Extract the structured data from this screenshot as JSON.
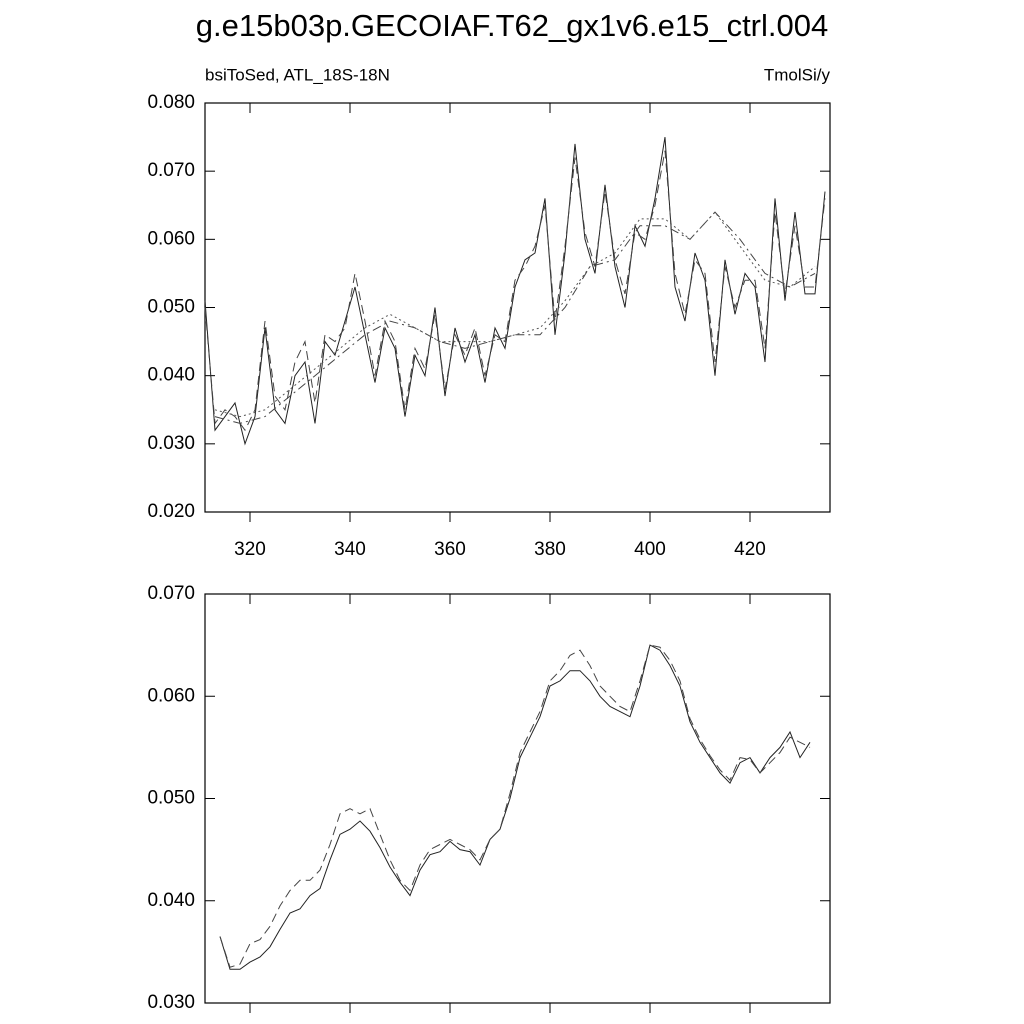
{
  "chart_data": [
    {
      "type": "line",
      "title": "g.e15b03p.GECOIAF.T62_gx1v6.e15_ctrl.004",
      "left_label": "bsiToSed, ATL_18S-18N",
      "right_label": "TmolSi/y",
      "xlim": [
        311,
        436
      ],
      "xticks": [
        320,
        340,
        360,
        380,
        400,
        420
      ],
      "xtick_labels": true,
      "ylim": [
        0.02,
        0.08
      ],
      "yticks": [
        {
          "value": 0.02,
          "label": "0.020"
        },
        {
          "value": 0.03,
          "label": "0.030"
        },
        {
          "value": 0.04,
          "label": "0.040"
        },
        {
          "value": 0.05,
          "label": "0.050"
        },
        {
          "value": 0.06,
          "label": "0.060"
        },
        {
          "value": 0.07,
          "label": "0.070"
        },
        {
          "value": 0.08,
          "label": "0.080"
        }
      ],
      "series": [
        {
          "color": "#222222",
          "style": "solid",
          "x": [
            311,
            313,
            315,
            317,
            319,
            321,
            323,
            325,
            327,
            329,
            331,
            333,
            335,
            337,
            339,
            341,
            343,
            345,
            347,
            349,
            351,
            353,
            355,
            357,
            359,
            361,
            363,
            365,
            367,
            369,
            371,
            373,
            375,
            377,
            379,
            381,
            383,
            385,
            387,
            389,
            391,
            393,
            395,
            397,
            399,
            401,
            403,
            405,
            407,
            409,
            411,
            413,
            415,
            417,
            419,
            421,
            423,
            425,
            427,
            429,
            431,
            433,
            435
          ],
          "values": [
            0.051,
            0.032,
            0.034,
            0.036,
            0.03,
            0.034,
            0.047,
            0.035,
            0.033,
            0.04,
            0.042,
            0.033,
            0.045,
            0.043,
            0.048,
            0.053,
            0.046,
            0.039,
            0.047,
            0.044,
            0.034,
            0.043,
            0.04,
            0.05,
            0.037,
            0.047,
            0.042,
            0.046,
            0.039,
            0.047,
            0.044,
            0.053,
            0.057,
            0.058,
            0.066,
            0.046,
            0.058,
            0.074,
            0.06,
            0.055,
            0.068,
            0.056,
            0.05,
            0.062,
            0.059,
            0.066,
            0.075,
            0.053,
            0.048,
            0.058,
            0.054,
            0.04,
            0.057,
            0.049,
            0.055,
            0.053,
            0.042,
            0.066,
            0.051,
            0.064,
            0.052,
            0.052,
            0.067
          ]
        },
        {
          "color": "#444444",
          "style": "dashed",
          "x": [
            311,
            313,
            315,
            317,
            319,
            321,
            323,
            325,
            327,
            329,
            331,
            333,
            335,
            337,
            339,
            341,
            343,
            345,
            347,
            349,
            351,
            353,
            355,
            357,
            359,
            361,
            363,
            365,
            367,
            369,
            371,
            373,
            375,
            377,
            379,
            381,
            383,
            385,
            387,
            389,
            391,
            393,
            395,
            397,
            399,
            401,
            403,
            405,
            407,
            409,
            411,
            413,
            415,
            417,
            419,
            421,
            423,
            425,
            427,
            429,
            431,
            433,
            435
          ],
          "values": [
            0.05,
            0.033,
            0.035,
            0.034,
            0.032,
            0.035,
            0.048,
            0.037,
            0.035,
            0.042,
            0.045,
            0.036,
            0.046,
            0.045,
            0.047,
            0.055,
            0.048,
            0.04,
            0.048,
            0.045,
            0.035,
            0.044,
            0.041,
            0.049,
            0.038,
            0.046,
            0.043,
            0.047,
            0.04,
            0.046,
            0.045,
            0.054,
            0.056,
            0.059,
            0.065,
            0.048,
            0.059,
            0.072,
            0.061,
            0.056,
            0.067,
            0.057,
            0.052,
            0.061,
            0.06,
            0.065,
            0.073,
            0.055,
            0.049,
            0.057,
            0.055,
            0.042,
            0.056,
            0.05,
            0.054,
            0.054,
            0.044,
            0.064,
            0.052,
            0.062,
            0.053,
            0.053,
            0.066
          ]
        },
        {
          "color": "#444444",
          "style": "dashdot",
          "x": [
            313,
            318,
            323,
            328,
            333,
            338,
            343,
            348,
            353,
            358,
            363,
            368,
            373,
            378,
            383,
            388,
            393,
            398,
            403,
            408,
            413,
            418,
            423,
            428,
            433
          ],
          "values": [
            0.034,
            0.033,
            0.034,
            0.037,
            0.04,
            0.043,
            0.046,
            0.048,
            0.047,
            0.045,
            0.044,
            0.045,
            0.046,
            0.046,
            0.05,
            0.056,
            0.057,
            0.062,
            0.062,
            0.06,
            0.064,
            0.06,
            0.055,
            0.053,
            0.055
          ]
        },
        {
          "color": "#555555",
          "style": "dotted",
          "x": [
            313,
            318,
            323,
            328,
            333,
            338,
            343,
            348,
            353,
            358,
            363,
            368,
            373,
            378,
            383,
            388,
            393,
            398,
            403,
            408,
            413,
            418,
            423,
            428,
            433
          ],
          "values": [
            0.035,
            0.034,
            0.035,
            0.038,
            0.041,
            0.044,
            0.047,
            0.049,
            0.047,
            0.045,
            0.045,
            0.045,
            0.046,
            0.047,
            0.051,
            0.056,
            0.058,
            0.063,
            0.063,
            0.06,
            0.064,
            0.059,
            0.054,
            0.053,
            0.056
          ]
        }
      ]
    },
    {
      "type": "line",
      "xlim": [
        311,
        436
      ],
      "xticks": [
        320,
        340,
        360,
        380,
        400,
        420
      ],
      "xtick_labels": false,
      "ylim": [
        0.03,
        0.07
      ],
      "yticks": [
        {
          "value": 0.03,
          "label": "0.030"
        },
        {
          "value": 0.04,
          "label": "0.040"
        },
        {
          "value": 0.05,
          "label": "0.050"
        },
        {
          "value": 0.06,
          "label": "0.060"
        },
        {
          "value": 0.07,
          "label": "0.070"
        }
      ],
      "series": [
        {
          "color": "#222222",
          "style": "solid",
          "x": [
            314,
            316,
            318,
            320,
            322,
            324,
            326,
            328,
            330,
            332,
            334,
            336,
            338,
            340,
            342,
            344,
            346,
            348,
            350,
            352,
            354,
            356,
            358,
            360,
            362,
            364,
            366,
            368,
            370,
            372,
            374,
            376,
            378,
            380,
            382,
            384,
            386,
            388,
            390,
            392,
            394,
            396,
            398,
            400,
            402,
            404,
            406,
            408,
            410,
            412,
            414,
            416,
            418,
            420,
            422,
            424,
            426,
            428,
            430,
            432
          ],
          "values": [
            0.0365,
            0.0333,
            0.0333,
            0.034,
            0.0345,
            0.0355,
            0.0372,
            0.0388,
            0.0392,
            0.0405,
            0.0412,
            0.044,
            0.0465,
            0.047,
            0.0478,
            0.0468,
            0.0452,
            0.0433,
            0.0418,
            0.0405,
            0.043,
            0.0445,
            0.0448,
            0.0458,
            0.045,
            0.0448,
            0.0435,
            0.046,
            0.047,
            0.05,
            0.054,
            0.056,
            0.058,
            0.061,
            0.0615,
            0.0625,
            0.0625,
            0.0615,
            0.06,
            0.059,
            0.0585,
            0.058,
            0.061,
            0.065,
            0.0645,
            0.063,
            0.061,
            0.0575,
            0.0555,
            0.054,
            0.0525,
            0.0515,
            0.0535,
            0.054,
            0.0525,
            0.054,
            0.055,
            0.0565,
            0.054,
            0.0555
          ]
        },
        {
          "color": "#444444",
          "style": "dashed",
          "x": [
            314,
            316,
            318,
            320,
            322,
            324,
            326,
            328,
            330,
            332,
            334,
            336,
            338,
            340,
            342,
            344,
            346,
            348,
            350,
            352,
            354,
            356,
            358,
            360,
            362,
            364,
            366,
            368,
            370,
            372,
            374,
            376,
            378,
            380,
            382,
            384,
            386,
            388,
            390,
            392,
            394,
            396,
            398,
            400,
            402,
            404,
            406,
            408,
            410,
            412,
            414,
            416,
            418,
            420,
            422,
            424,
            426,
            428,
            430,
            432
          ],
          "values": [
            0.0365,
            0.0335,
            0.0338,
            0.0358,
            0.0362,
            0.0375,
            0.0395,
            0.041,
            0.042,
            0.042,
            0.043,
            0.0455,
            0.0485,
            0.049,
            0.0485,
            0.049,
            0.0465,
            0.044,
            0.042,
            0.041,
            0.0435,
            0.045,
            0.0455,
            0.046,
            0.0455,
            0.045,
            0.044,
            0.046,
            0.047,
            0.0505,
            0.0545,
            0.0565,
            0.0585,
            0.0615,
            0.0625,
            0.064,
            0.0645,
            0.063,
            0.061,
            0.06,
            0.059,
            0.0585,
            0.0615,
            0.065,
            0.0648,
            0.0635,
            0.0615,
            0.0578,
            0.0558,
            0.0542,
            0.0528,
            0.0518,
            0.054,
            0.0538,
            0.0525,
            0.0535,
            0.0545,
            0.056,
            0.0555,
            0.055
          ]
        }
      ]
    }
  ]
}
